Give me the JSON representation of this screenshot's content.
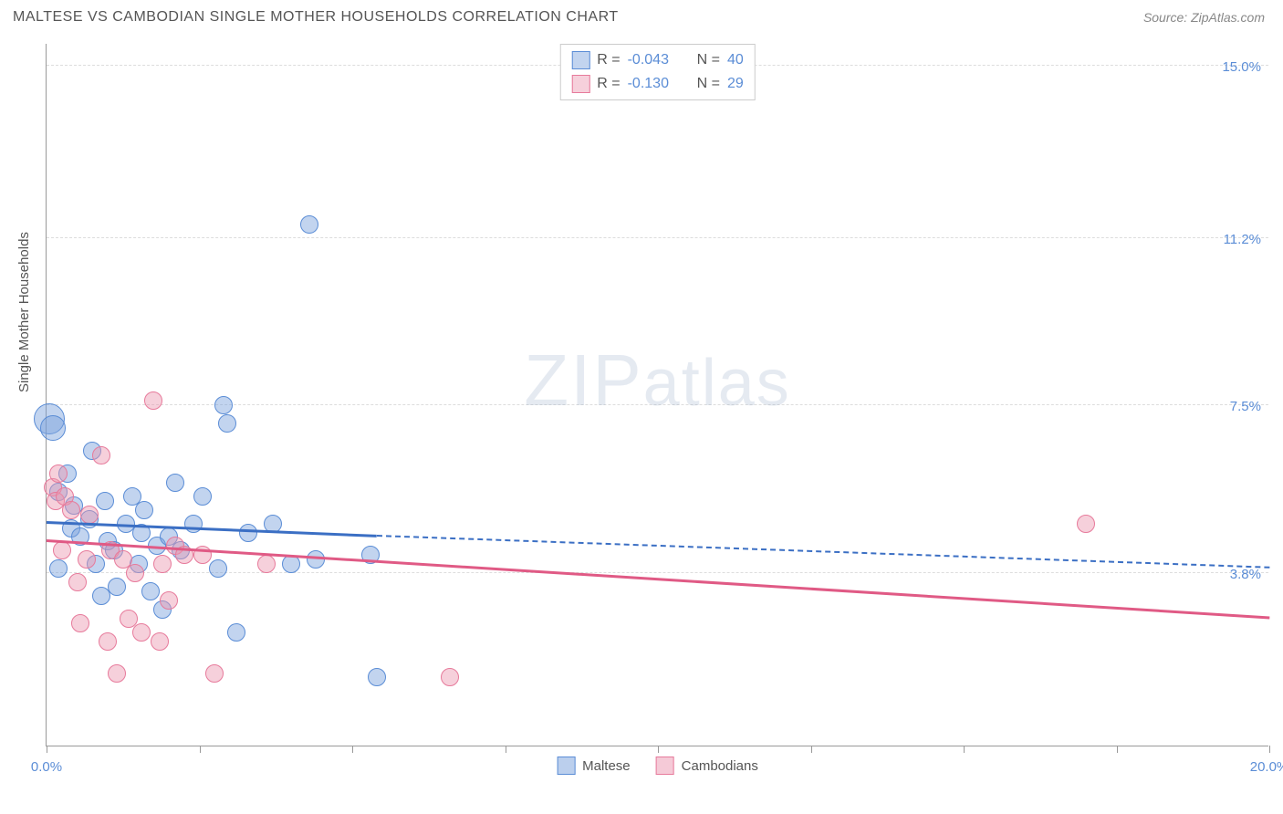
{
  "header": {
    "title": "MALTESE VS CAMBODIAN SINGLE MOTHER HOUSEHOLDS CORRELATION CHART",
    "source": "Source: ZipAtlas.com"
  },
  "chart": {
    "type": "scatter",
    "ylabel": "Single Mother Households",
    "watermark_zip": "ZIP",
    "watermark_atlas": "atlas",
    "xlim": [
      0,
      20
    ],
    "ylim": [
      0,
      15.5
    ],
    "x_ticks": [
      0,
      2.5,
      5.0,
      7.5,
      10.0,
      12.5,
      15.0,
      17.5,
      20.0
    ],
    "x_tick_labels": {
      "0": "0.0%",
      "20": "20.0%"
    },
    "y_gridlines": [
      {
        "y": 15.0,
        "label": "15.0%"
      },
      {
        "y": 11.2,
        "label": "11.2%"
      },
      {
        "y": 7.5,
        "label": "7.5%"
      },
      {
        "y": 3.8,
        "label": "3.8%"
      }
    ],
    "colors": {
      "series1_fill": "rgba(120,160,220,0.45)",
      "series1_stroke": "#5b8dd6",
      "series2_fill": "rgba(235,150,175,0.45)",
      "series2_stroke": "#e77a9b",
      "trend1": "#3b6fc4",
      "trend2": "#e05a85",
      "grid": "#dddddd",
      "axis": "#999999",
      "tick_text": "#5b8dd6"
    },
    "marker_radius": 10,
    "series": [
      {
        "name": "Maltese",
        "r_label": "R =",
        "r_value": "-0.043",
        "n_label": "N =",
        "n_value": "40",
        "trend": {
          "x1": 0,
          "y1": 4.9,
          "x2": 5.4,
          "y2": 4.6,
          "dash_x2": 20,
          "dash_y2": 3.9
        },
        "points": [
          {
            "x": 0.05,
            "y": 7.2,
            "r": 17
          },
          {
            "x": 0.1,
            "y": 7.0,
            "r": 14
          },
          {
            "x": 0.2,
            "y": 5.6
          },
          {
            "x": 0.2,
            "y": 3.9
          },
          {
            "x": 0.35,
            "y": 6.0
          },
          {
            "x": 0.4,
            "y": 4.8
          },
          {
            "x": 0.45,
            "y": 5.3
          },
          {
            "x": 0.55,
            "y": 4.6
          },
          {
            "x": 0.7,
            "y": 5.0
          },
          {
            "x": 0.75,
            "y": 6.5
          },
          {
            "x": 0.8,
            "y": 4.0
          },
          {
            "x": 0.9,
            "y": 3.3
          },
          {
            "x": 0.95,
            "y": 5.4
          },
          {
            "x": 1.0,
            "y": 4.5
          },
          {
            "x": 1.1,
            "y": 4.3
          },
          {
            "x": 1.15,
            "y": 3.5
          },
          {
            "x": 1.3,
            "y": 4.9
          },
          {
            "x": 1.4,
            "y": 5.5
          },
          {
            "x": 1.5,
            "y": 4.0
          },
          {
            "x": 1.55,
            "y": 4.7
          },
          {
            "x": 1.7,
            "y": 3.4
          },
          {
            "x": 1.8,
            "y": 4.4
          },
          {
            "x": 1.9,
            "y": 3.0
          },
          {
            "x": 2.1,
            "y": 5.8
          },
          {
            "x": 2.2,
            "y": 4.3
          },
          {
            "x": 2.4,
            "y": 4.9
          },
          {
            "x": 2.55,
            "y": 5.5
          },
          {
            "x": 2.8,
            "y": 3.9
          },
          {
            "x": 2.9,
            "y": 7.5
          },
          {
            "x": 2.95,
            "y": 7.1
          },
          {
            "x": 3.1,
            "y": 2.5
          },
          {
            "x": 3.3,
            "y": 4.7
          },
          {
            "x": 3.7,
            "y": 4.9
          },
          {
            "x": 4.0,
            "y": 4.0
          },
          {
            "x": 4.3,
            "y": 11.5
          },
          {
            "x": 4.4,
            "y": 4.1
          },
          {
            "x": 5.3,
            "y": 4.2
          },
          {
            "x": 5.4,
            "y": 1.5
          },
          {
            "x": 1.6,
            "y": 5.2
          },
          {
            "x": 2.0,
            "y": 4.6
          }
        ]
      },
      {
        "name": "Cambodians",
        "r_label": "R =",
        "r_value": "-0.130",
        "n_label": "N =",
        "n_value": "29",
        "trend": {
          "x1": 0,
          "y1": 4.5,
          "x2": 20,
          "y2": 2.8
        },
        "points": [
          {
            "x": 0.1,
            "y": 5.7
          },
          {
            "x": 0.15,
            "y": 5.4
          },
          {
            "x": 0.2,
            "y": 6.0
          },
          {
            "x": 0.25,
            "y": 4.3
          },
          {
            "x": 0.3,
            "y": 5.5
          },
          {
            "x": 0.4,
            "y": 5.2
          },
          {
            "x": 0.5,
            "y": 3.6
          },
          {
            "x": 0.55,
            "y": 2.7
          },
          {
            "x": 0.65,
            "y": 4.1
          },
          {
            "x": 0.9,
            "y": 6.4
          },
          {
            "x": 1.0,
            "y": 2.3
          },
          {
            "x": 1.05,
            "y": 4.3
          },
          {
            "x": 1.15,
            "y": 1.6
          },
          {
            "x": 1.25,
            "y": 4.1
          },
          {
            "x": 1.35,
            "y": 2.8
          },
          {
            "x": 1.45,
            "y": 3.8
          },
          {
            "x": 1.55,
            "y": 2.5
          },
          {
            "x": 1.75,
            "y": 7.6
          },
          {
            "x": 1.85,
            "y": 2.3
          },
          {
            "x": 1.9,
            "y": 4.0
          },
          {
            "x": 2.0,
            "y": 3.2
          },
          {
            "x": 2.1,
            "y": 4.4
          },
          {
            "x": 2.25,
            "y": 4.2
          },
          {
            "x": 2.55,
            "y": 4.2
          },
          {
            "x": 2.75,
            "y": 1.6
          },
          {
            "x": 3.6,
            "y": 4.0
          },
          {
            "x": 6.6,
            "y": 1.5
          },
          {
            "x": 17.0,
            "y": 4.9
          },
          {
            "x": 0.7,
            "y": 5.1
          }
        ]
      }
    ]
  },
  "legend_bottom": [
    {
      "label": "Maltese",
      "fill": "rgba(120,160,220,0.5)",
      "stroke": "#5b8dd6"
    },
    {
      "label": "Cambodians",
      "fill": "rgba(235,150,175,0.5)",
      "stroke": "#e77a9b"
    }
  ]
}
